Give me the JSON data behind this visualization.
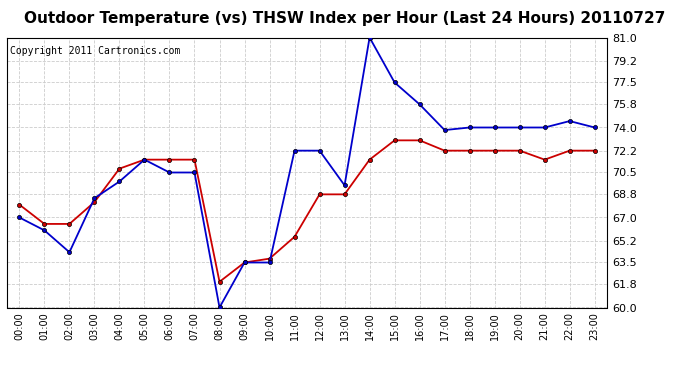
{
  "title": "Outdoor Temperature (vs) THSW Index per Hour (Last 24 Hours) 20110727",
  "copyright": "Copyright 2011 Cartronics.com",
  "hours": [
    "00:00",
    "01:00",
    "02:00",
    "03:00",
    "04:00",
    "05:00",
    "06:00",
    "07:00",
    "08:00",
    "09:00",
    "10:00",
    "11:00",
    "12:00",
    "13:00",
    "14:00",
    "15:00",
    "16:00",
    "17:00",
    "18:00",
    "19:00",
    "20:00",
    "21:00",
    "22:00",
    "23:00"
  ],
  "temp": [
    68.0,
    66.5,
    66.5,
    68.2,
    70.8,
    71.5,
    71.5,
    71.5,
    62.0,
    63.5,
    63.8,
    65.5,
    68.8,
    68.8,
    71.5,
    73.0,
    73.0,
    72.2,
    72.2,
    72.2,
    72.2,
    71.5,
    72.2,
    72.2
  ],
  "thsw": [
    67.0,
    66.0,
    64.3,
    68.5,
    69.8,
    71.5,
    70.5,
    70.5,
    60.0,
    63.5,
    63.5,
    72.2,
    72.2,
    69.5,
    81.0,
    77.5,
    75.8,
    73.8,
    74.0,
    74.0,
    74.0,
    74.0,
    74.5,
    74.0
  ],
  "temp_color": "#cc0000",
  "thsw_color": "#0000cc",
  "ylim_min": 60.0,
  "ylim_max": 81.0,
  "yticks": [
    60.0,
    61.8,
    63.5,
    65.2,
    67.0,
    68.8,
    70.5,
    72.2,
    74.0,
    75.8,
    77.5,
    79.2,
    81.0
  ],
  "bg_color": "#ffffff",
  "plot_bg_color": "#ffffff",
  "grid_color": "#cccccc",
  "title_fontsize": 11,
  "copyright_fontsize": 7,
  "marker": "o",
  "markersize": 3
}
